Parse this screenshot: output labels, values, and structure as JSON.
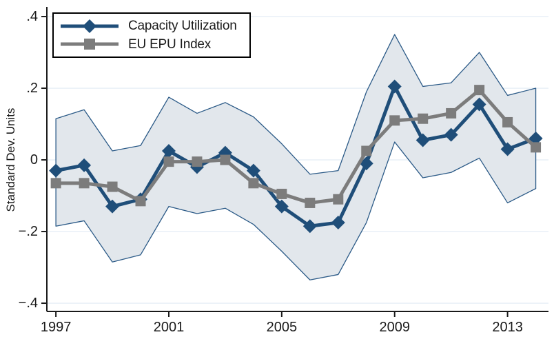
{
  "y_axis": {
    "title": "Standard Dev. Units"
  },
  "legend": {
    "items": [
      {
        "label": "Capacity Utilization",
        "marker": "diamond"
      },
      {
        "label": "EU EPU Index",
        "marker": "square"
      }
    ]
  },
  "colors": {
    "capacity_utilization": "#1f4e79",
    "eu_epu_index": "#7c7c7c",
    "band_fill": "#e2e7ec",
    "band_edge": "#2b5a87",
    "gridline": "#e5eef5",
    "axis": "#1a1a1a",
    "text": "#1a1a1a"
  },
  "chart_data": {
    "type": "line",
    "title": "",
    "xlabel": "",
    "ylabel": "Standard Dev. Units",
    "grid": true,
    "legend_position": "top-left",
    "x": [
      1997,
      1998,
      1999,
      2000,
      2001,
      2002,
      2003,
      2004,
      2005,
      2006,
      2007,
      2008,
      2009,
      2010,
      2011,
      2012,
      2013,
      2014
    ],
    "series": [
      {
        "name": "Capacity Utilization",
        "marker": "diamond",
        "color_key": "capacity_utilization",
        "values": [
          -0.03,
          -0.015,
          -0.13,
          -0.11,
          0.025,
          -0.02,
          0.02,
          -0.03,
          -0.13,
          -0.185,
          -0.175,
          -0.01,
          0.205,
          0.055,
          0.07,
          0.155,
          0.03,
          0.06
        ]
      },
      {
        "name": "EU EPU Index",
        "marker": "square",
        "color_key": "eu_epu_index",
        "values": [
          -0.065,
          -0.065,
          -0.075,
          -0.115,
          -0.005,
          -0.005,
          0.0,
          -0.065,
          -0.095,
          -0.12,
          -0.11,
          0.025,
          0.11,
          0.115,
          0.13,
          0.195,
          0.105,
          0.035
        ]
      }
    ],
    "confidence_band": {
      "around": "Capacity Utilization",
      "upper": [
        0.115,
        0.14,
        0.025,
        0.04,
        0.175,
        0.13,
        0.16,
        0.12,
        0.045,
        -0.04,
        -0.03,
        0.19,
        0.35,
        0.205,
        0.215,
        0.3,
        0.18,
        0.2
      ],
      "lower": [
        -0.185,
        -0.17,
        -0.285,
        -0.265,
        -0.13,
        -0.15,
        -0.135,
        -0.18,
        -0.255,
        -0.335,
        -0.32,
        -0.175,
        0.05,
        -0.05,
        -0.035,
        0.005,
        -0.12,
        -0.08
      ]
    },
    "xticks": [
      "1997",
      "2001",
      "2005",
      "2009",
      "2013"
    ],
    "xtick_values": [
      1997,
      2001,
      2005,
      2009,
      2013
    ],
    "yticks": [
      {
        "label": ".4",
        "value": 0.4
      },
      {
        "label": ".2",
        "value": 0.2
      },
      {
        "label": "0",
        "value": 0.0
      },
      {
        "label": "−.2",
        "value": -0.2
      },
      {
        "label": "−.4",
        "value": -0.4
      }
    ],
    "xlim": [
      1996.68,
      2014.45
    ],
    "ylim": [
      -0.423,
      0.427
    ]
  }
}
